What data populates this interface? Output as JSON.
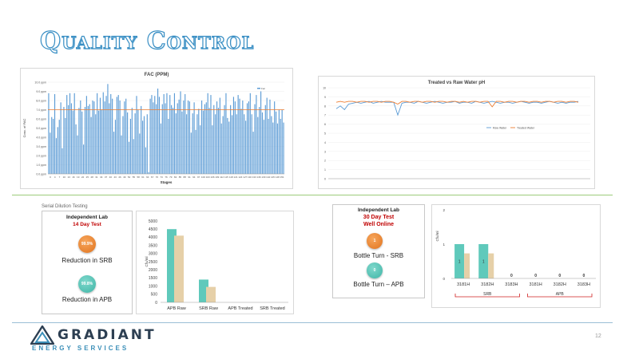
{
  "slide": {
    "title": "Quality Control",
    "page_number": "12"
  },
  "logo": {
    "name": "GRADIANT",
    "subtitle": "ENERGY SERVICES"
  },
  "serial_dilution_label": "Serial Dilution Testing",
  "lab14": {
    "title": "Independent Lab",
    "subtitle": "14 Day Test",
    "items": [
      {
        "value": "99.9%",
        "caption": "Reduction in SRB"
      },
      {
        "value": "99.8%",
        "caption": "Reduction in APB"
      }
    ]
  },
  "lab30": {
    "title": "Independent Lab",
    "subtitle_1": "30 Day Test",
    "subtitle_2": "Well Online",
    "items": [
      {
        "value": "1",
        "caption": "Bottle Turn - SRB"
      },
      {
        "value": "0",
        "caption": "Bottle Turn – APB"
      }
    ]
  },
  "colors": {
    "blue": "#5b9bd5",
    "orange": "#ed7d31",
    "teal": "#5fc9bb",
    "tan": "#e6d0a8",
    "accent": "#3a8fc4"
  },
  "chart_data": [
    {
      "type": "bar",
      "title": "FAC (PPM)",
      "xlabel": "Stages",
      "ylabel": "Conc. of FAC",
      "legend": "Fac",
      "yticks": [
        "0.0 ppm",
        "1.0 ppm",
        "2.0 ppm",
        "3.0 ppm",
        "4.0 ppm",
        "5.0 ppm",
        "6.0 ppm",
        "7.0 ppm",
        "8.0 ppm",
        "9.0 ppm",
        "10.0 ppm"
      ],
      "ylim": [
        0,
        10
      ],
      "reference_line": 7.0,
      "values": [
        8.8,
        4.5,
        6.2,
        6.0,
        8.7,
        3.9,
        5.1,
        5.9,
        7.8,
        2.8,
        7.3,
        6.1,
        8.6,
        7.5,
        8.8,
        7.7,
        6.9,
        8.8,
        5.4,
        4.2,
        7.2,
        8.0,
        6.8,
        3.2,
        7.3,
        8.5,
        7.4,
        7.6,
        6.2,
        8.0,
        7.9,
        6.5,
        8.8,
        6.9,
        8.3,
        7.0,
        8.9,
        7.9,
        8.5,
        9.8,
        7.7,
        8.7,
        8.2,
        4.6,
        5.9,
        8.4,
        8.6,
        8.0,
        4.2,
        6.3,
        7.9,
        8.2,
        6.7,
        3.5,
        6.0,
        7.2,
        3.8,
        6.6,
        8.5,
        7.0,
        4.4,
        7.4,
        5.8,
        6.3,
        2.9,
        6.5,
        0.2,
        8.2,
        8.6,
        7.8,
        8.5,
        7.6,
        9.3,
        8.4,
        5.5,
        7.6,
        8.7,
        7.7,
        8.8,
        6.0,
        8.6,
        7.5,
        7.2,
        8.8,
        6.6,
        7.7,
        8.1,
        9.0,
        6.8,
        8.0,
        8.7,
        6.5,
        8.0,
        7.9,
        4.5,
        6.6,
        7.8,
        4.8,
        6.5,
        7.1,
        5.3,
        8.0,
        6.9,
        7.6,
        7.8,
        8.8,
        7.2,
        8.6,
        5.3,
        7.5,
        6.5,
        7.9,
        7.2,
        8.3,
        5.5,
        6.3,
        7.5,
        8.8,
        6.1,
        5.7,
        7.5,
        6.4,
        8.4,
        7.9,
        6.5,
        8.6,
        8.2,
        7.1,
        8.0,
        6.5,
        5.8,
        7.7,
        7.9,
        8.8,
        6.5,
        4.6,
        7.6,
        8.6,
        6.2,
        7.3,
        9.0,
        6.7,
        5.9,
        7.5,
        8.3,
        6.0,
        8.1,
        6.3,
        5.6,
        7.9,
        6.8,
        5.5,
        7.0,
        6.0,
        7.0,
        5.6
      ],
      "xticks": [
        "0",
        "4",
        "7",
        "10",
        "13",
        "16",
        "19",
        "22",
        "25",
        "28",
        "31",
        "34",
        "37",
        "40",
        "43",
        "46",
        "49",
        "52",
        "55",
        "58",
        "61",
        "64",
        "67",
        "70",
        "73",
        "76",
        "79",
        "82",
        "85",
        "88",
        "91",
        "94",
        "97",
        "100",
        "103",
        "106",
        "109",
        "112",
        "115",
        "118",
        "121",
        "124",
        "127",
        "130",
        "133",
        "136",
        "139",
        "142",
        "145",
        "148",
        "151"
      ]
    },
    {
      "type": "line",
      "title": "Treated vs Raw Water pH",
      "ylim": [
        0,
        10
      ],
      "yticks": [
        "0",
        "1",
        "2",
        "3",
        "4",
        "5",
        "6",
        "7",
        "8",
        "9",
        "10"
      ],
      "series": [
        {
          "name": "Raw Water",
          "values": [
            7.7,
            8.0,
            7.6,
            8.2,
            8.3,
            8.4,
            8.3,
            8.4,
            8.5,
            8.3,
            8.4,
            8.5,
            8.4,
            8.4,
            8.4,
            7.0,
            8.3,
            8.4,
            8.4,
            8.3,
            8.5,
            8.4,
            8.3,
            8.4,
            8.5,
            8.4,
            8.3,
            8.4,
            8.4,
            8.5,
            8.3,
            8.4,
            8.4,
            8.3,
            8.5,
            8.4,
            8.3,
            8.4,
            8.5,
            8.4,
            8.3,
            8.4,
            8.4,
            8.3,
            8.4,
            8.5,
            8.4,
            8.3,
            8.4,
            8.4,
            8.3,
            8.4,
            8.5,
            8.4,
            8.3,
            8.4,
            8.3,
            8.4,
            8.4,
            8.5
          ]
        },
        {
          "name": "Treated Water",
          "values": [
            8.4,
            8.5,
            8.4,
            8.5,
            8.5,
            8.4,
            8.5,
            8.5,
            8.4,
            8.5,
            8.5,
            8.4,
            8.5,
            8.5,
            8.4,
            8.2,
            8.5,
            8.5,
            8.4,
            8.5,
            8.5,
            8.4,
            8.5,
            8.5,
            8.4,
            8.5,
            8.5,
            8.4,
            8.5,
            8.5,
            8.4,
            8.5,
            8.4,
            8.5,
            8.5,
            8.4,
            8.5,
            8.5,
            7.9,
            8.5,
            8.5,
            8.4,
            8.5,
            8.5,
            8.4,
            8.5,
            8.5,
            8.4,
            8.5,
            8.5,
            8.4,
            8.5,
            8.5,
            8.4,
            8.5,
            8.5,
            8.4,
            8.5,
            8.5,
            8.4
          ]
        }
      ]
    },
    {
      "type": "bar",
      "categories": [
        "APB Raw",
        "SRB Raw",
        "APB Treated",
        "SRB Treated"
      ],
      "ylabel": "Cfu/ml",
      "ylim": [
        0,
        5000
      ],
      "yticks": [
        "0",
        "500",
        "1000",
        "1500",
        "2000",
        "2500",
        "3000",
        "3500",
        "4000",
        "4500",
        "5000"
      ],
      "series": [
        {
          "values": [
            4500,
            1400,
            0,
            0
          ]
        },
        {
          "values": [
            4100,
            950,
            0,
            0
          ]
        }
      ]
    },
    {
      "type": "bar",
      "categories": [
        "3181H",
        "3182H",
        "3183H",
        "3181H",
        "3182H",
        "3183H"
      ],
      "groups": [
        {
          "label": "SRB"
        },
        {
          "label": "APB"
        }
      ],
      "ylabel": "Cfu/ml",
      "ylim": [
        0,
        2
      ],
      "yticks": [
        "0",
        "1",
        "2"
      ],
      "values": [
        1,
        1,
        0,
        0,
        0,
        0
      ],
      "data_labels": [
        "1",
        "1",
        "0",
        "0",
        "0",
        "0"
      ]
    }
  ]
}
